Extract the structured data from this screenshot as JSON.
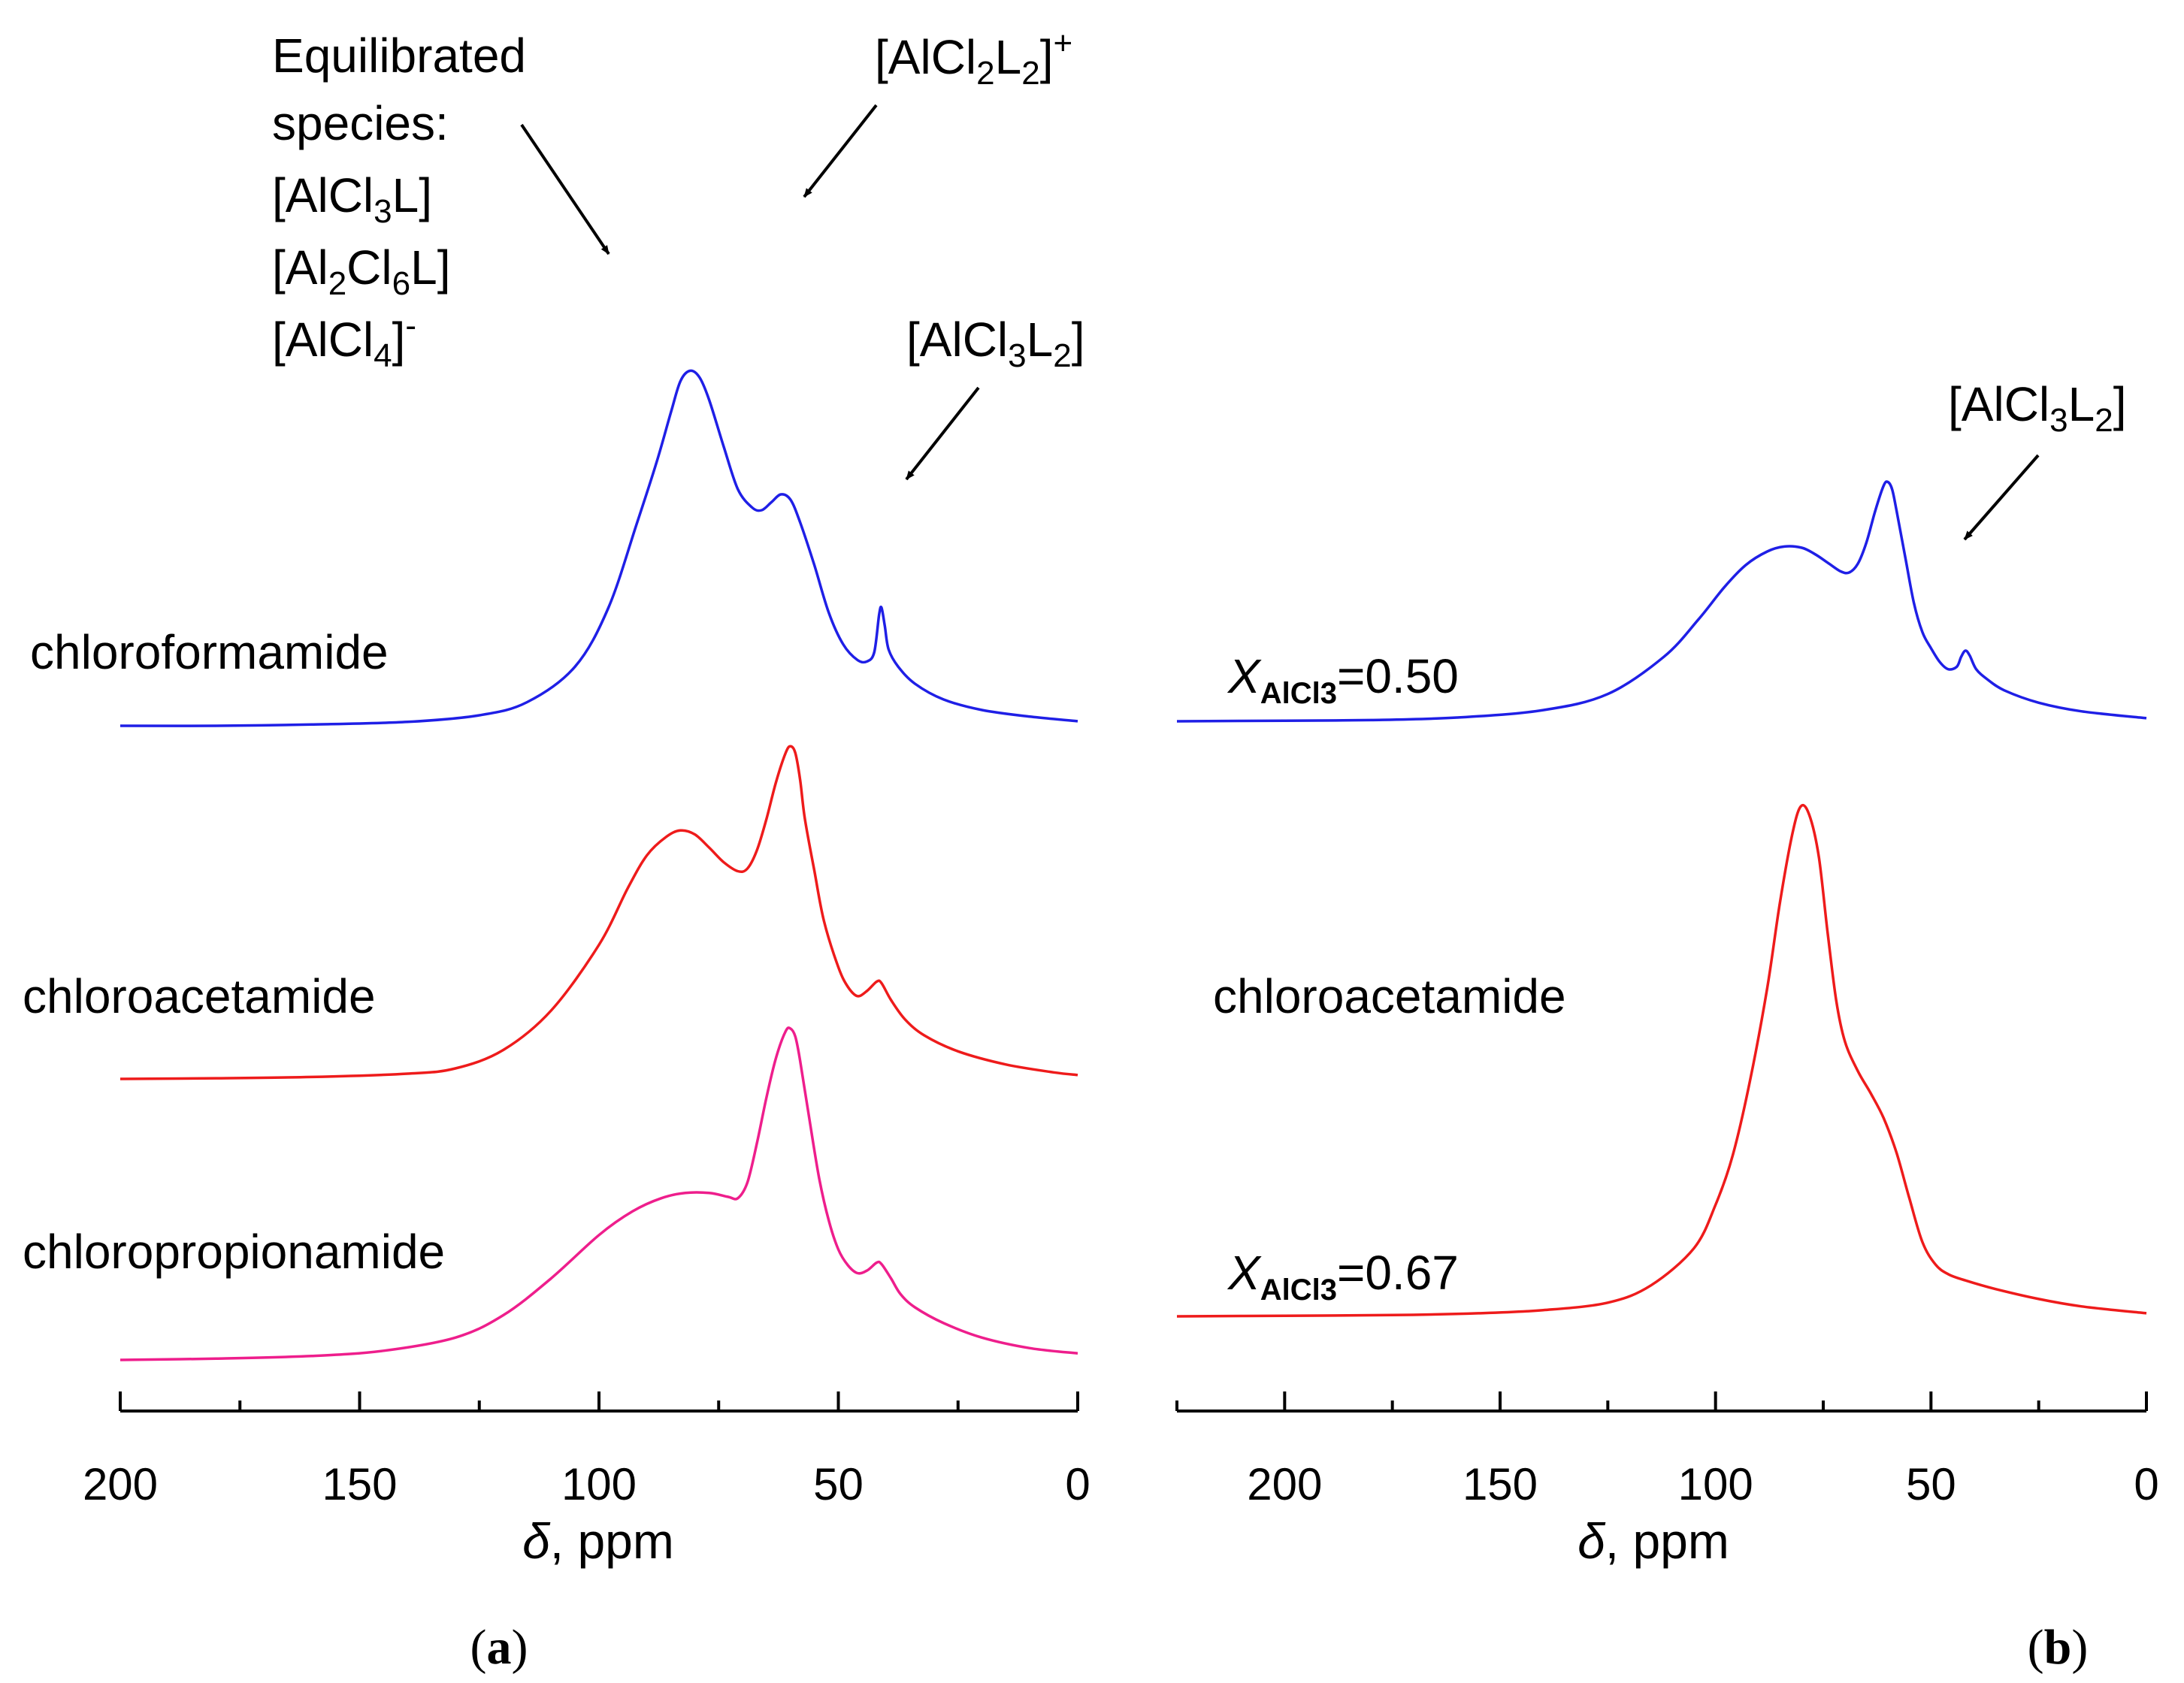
{
  "chart_data": [
    {
      "panel_label": "a",
      "type": "line",
      "xlabel_symbol": "δ",
      "xlabel_unit": ", ppm",
      "xlim": [
        200,
        0
      ],
      "x_ticks": [
        "200",
        "150",
        "100",
        "50",
        "0"
      ],
      "y_axis": "none",
      "series": [
        {
          "name": "chloroformamide",
          "color": "#1f1fe6",
          "points": [
            [
              200,
              0.0
            ],
            [
              180,
              0.0
            ],
            [
              160,
              0.01
            ],
            [
              140,
              0.03
            ],
            [
              125,
              0.08
            ],
            [
              115,
              0.18
            ],
            [
              105,
              0.45
            ],
            [
              98,
              0.9
            ],
            [
              92,
              1.55
            ],
            [
              88,
              2.0
            ],
            [
              85,
              2.38
            ],
            [
              83,
              2.62
            ],
            [
              81,
              2.7
            ],
            [
              79,
              2.65
            ],
            [
              77,
              2.48
            ],
            [
              74,
              2.13
            ],
            [
              71,
              1.8
            ],
            [
              68,
              1.66
            ],
            [
              66,
              1.64
            ],
            [
              64,
              1.7
            ],
            [
              62,
              1.76
            ],
            [
              60,
              1.72
            ],
            [
              58,
              1.55
            ],
            [
              55,
              1.22
            ],
            [
              52,
              0.86
            ],
            [
              49,
              0.62
            ],
            [
              46,
              0.5
            ],
            [
              44,
              0.49
            ],
            [
              42.5,
              0.56
            ],
            [
              41.5,
              0.84
            ],
            [
              41,
              0.9
            ],
            [
              40.3,
              0.76
            ],
            [
              39.5,
              0.58
            ],
            [
              37.5,
              0.45
            ],
            [
              34,
              0.32
            ],
            [
              28,
              0.2
            ],
            [
              20,
              0.12
            ],
            [
              10,
              0.07
            ],
            [
              0,
              0.035
            ]
          ],
          "label": "chloroformamide"
        },
        {
          "name": "chloroacetamide",
          "color": "#ee1b1b",
          "points": [
            [
              200,
              0.0
            ],
            [
              180,
              0.005
            ],
            [
              160,
              0.015
            ],
            [
              140,
              0.04
            ],
            [
              130,
              0.08
            ],
            [
              120,
              0.22
            ],
            [
              110,
              0.52
            ],
            [
              100,
              1.02
            ],
            [
              94,
              1.45
            ],
            [
              90,
              1.7
            ],
            [
              86,
              1.84
            ],
            [
              83,
              1.89
            ],
            [
              80,
              1.86
            ],
            [
              77,
              1.76
            ],
            [
              74,
              1.65
            ],
            [
              71,
              1.58
            ],
            [
              69,
              1.6
            ],
            [
              67,
              1.74
            ],
            [
              65,
              1.98
            ],
            [
              63,
              2.26
            ],
            [
              61,
              2.48
            ],
            [
              60,
              2.53
            ],
            [
              59,
              2.48
            ],
            [
              58,
              2.28
            ],
            [
              57,
              1.98
            ],
            [
              55,
              1.58
            ],
            [
              53,
              1.2
            ],
            [
              50,
              0.85
            ],
            [
              48,
              0.7
            ],
            [
              46,
              0.63
            ],
            [
              44,
              0.67
            ],
            [
              42,
              0.74
            ],
            [
              41,
              0.73
            ],
            [
              39,
              0.6
            ],
            [
              36,
              0.45
            ],
            [
              32,
              0.33
            ],
            [
              25,
              0.21
            ],
            [
              15,
              0.11
            ],
            [
              5,
              0.05
            ],
            [
              0,
              0.03
            ]
          ],
          "label": "chloroacetamide"
        },
        {
          "name": "chloropropionamide",
          "color": "#ee1e8c",
          "points": [
            [
              200,
              0.0
            ],
            [
              180,
              0.01
            ],
            [
              160,
              0.03
            ],
            [
              145,
              0.07
            ],
            [
              130,
              0.17
            ],
            [
              120,
              0.34
            ],
            [
              110,
              0.62
            ],
            [
              100,
              0.95
            ],
            [
              93,
              1.13
            ],
            [
              87,
              1.23
            ],
            [
              82,
              1.27
            ],
            [
              77,
              1.27
            ],
            [
              73,
              1.24
            ],
            [
              71,
              1.23
            ],
            [
              69,
              1.35
            ],
            [
              67,
              1.65
            ],
            [
              65,
              2.0
            ],
            [
              63,
              2.3
            ],
            [
              61,
              2.5
            ],
            [
              60,
              2.52
            ],
            [
              59,
              2.46
            ],
            [
              58,
              2.28
            ],
            [
              56,
              1.82
            ],
            [
              54,
              1.38
            ],
            [
              52,
              1.06
            ],
            [
              50,
              0.84
            ],
            [
              48,
              0.72
            ],
            [
              46,
              0.66
            ],
            [
              44,
              0.68
            ],
            [
              42,
              0.74
            ],
            [
              41,
              0.73
            ],
            [
              39,
              0.62
            ],
            [
              37,
              0.5
            ],
            [
              34,
              0.4
            ],
            [
              28,
              0.28
            ],
            [
              20,
              0.17
            ],
            [
              10,
              0.09
            ],
            [
              0,
              0.05
            ]
          ],
          "label": "chloropropionamide"
        }
      ],
      "annotations": {
        "equilibrated": [
          "Equilibrated",
          "species:",
          "[AlCl",
          "3",
          "L]",
          "[Al",
          "2",
          "Cl",
          "6",
          "L]",
          "[AlCl",
          "4",
          "]",
          "-"
        ],
        "cation": [
          "[AlCl",
          "2",
          "L",
          "2",
          "]",
          "+"
        ],
        "alcl3l2": [
          "[AlCl",
          "3",
          "L",
          "2",
          "]"
        ]
      },
      "panel_caption": [
        "(",
        "a",
        ")"
      ]
    },
    {
      "panel_label": "b",
      "type": "line",
      "xlabel_symbol": "δ",
      "xlabel_unit": ", ppm",
      "xlim": [
        225,
        0
      ],
      "x_ticks": [
        "200",
        "150",
        "100",
        "50",
        "0"
      ],
      "y_axis": "none",
      "series": [
        {
          "name": "chloroacetamide X(AlCl3)=0.50",
          "color": "#1f1fe6",
          "points": [
            [
              225,
              0.0
            ],
            [
              200,
              0.005
            ],
            [
              180,
              0.01
            ],
            [
              160,
              0.03
            ],
            [
              140,
              0.09
            ],
            [
              125,
              0.22
            ],
            [
              112,
              0.52
            ],
            [
              104,
              0.82
            ],
            [
              98,
              1.08
            ],
            [
              93,
              1.26
            ],
            [
              88,
              1.37
            ],
            [
              84,
              1.41
            ],
            [
              80,
              1.4
            ],
            [
              77,
              1.35
            ],
            [
              74,
              1.28
            ],
            [
              71,
              1.21
            ],
            [
              69,
              1.2
            ],
            [
              67,
              1.27
            ],
            [
              65,
              1.44
            ],
            [
              63,
              1.69
            ],
            [
              61,
              1.9
            ],
            [
              60,
              1.93
            ],
            [
              59,
              1.87
            ],
            [
              58,
              1.7
            ],
            [
              56,
              1.33
            ],
            [
              54,
              0.96
            ],
            [
              52,
              0.72
            ],
            [
              50,
              0.59
            ],
            [
              48,
              0.48
            ],
            [
              46,
              0.42
            ],
            [
              44,
              0.44
            ],
            [
              43,
              0.52
            ],
            [
              42,
              0.57
            ],
            [
              41,
              0.53
            ],
            [
              39.5,
              0.42
            ],
            [
              37,
              0.34
            ],
            [
              33,
              0.25
            ],
            [
              25,
              0.15
            ],
            [
              15,
              0.08
            ],
            [
              0,
              0.025
            ]
          ],
          "label": [
            "X",
            "AlCl3",
            "=0.50"
          ]
        },
        {
          "name": "chloroacetamide X(AlCl3)=0.67",
          "color": "#ee1b1b",
          "points": [
            [
              225,
              0.0
            ],
            [
              200,
              0.005
            ],
            [
              175,
              0.01
            ],
            [
              155,
              0.025
            ],
            [
              140,
              0.05
            ],
            [
              125,
              0.11
            ],
            [
              115,
              0.25
            ],
            [
              105,
              0.55
            ],
            [
              100,
              0.9
            ],
            [
              96,
              1.3
            ],
            [
              92,
              1.9
            ],
            [
              88,
              2.65
            ],
            [
              85,
              3.35
            ],
            [
              82,
              3.92
            ],
            [
              80,
              4.12
            ],
            [
              78,
              4.02
            ],
            [
              76,
              3.7
            ],
            [
              74,
              3.1
            ],
            [
              72,
              2.55
            ],
            [
              70,
              2.22
            ],
            [
              67,
              1.98
            ],
            [
              64,
              1.8
            ],
            [
              61,
              1.6
            ],
            [
              58,
              1.32
            ],
            [
              55,
              0.95
            ],
            [
              52,
              0.6
            ],
            [
              49,
              0.42
            ],
            [
              46,
              0.34
            ],
            [
              42,
              0.29
            ],
            [
              35,
              0.22
            ],
            [
              25,
              0.14
            ],
            [
              15,
              0.08
            ],
            [
              0,
              0.025
            ]
          ],
          "label": [
            "X",
            "AlCl3",
            "=0.67"
          ]
        }
      ],
      "center_label": "chloroacetamide",
      "annotations": {
        "alcl3l2": [
          "[AlCl",
          "3",
          "L",
          "2",
          "]"
        ]
      },
      "panel_caption": [
        "(",
        "b",
        ")"
      ]
    }
  ]
}
